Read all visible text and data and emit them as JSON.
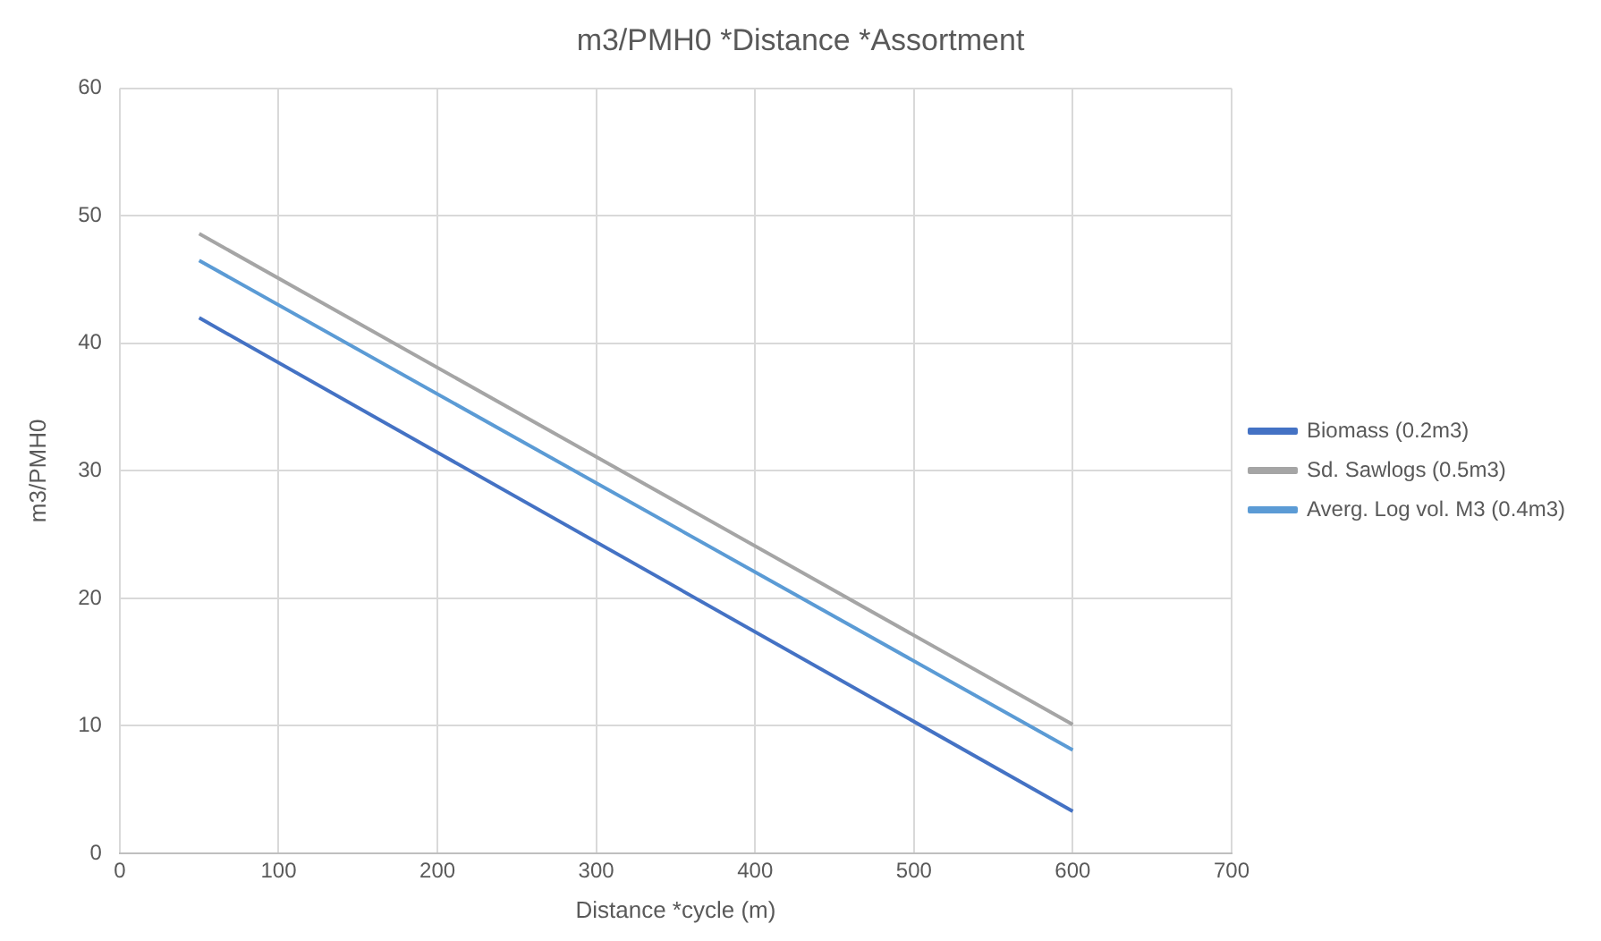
{
  "chart_data": {
    "type": "line",
    "title": "m3/PMH0 *Distance *Assortment",
    "xlabel": "Distance *cycle (m)",
    "ylabel": "m3/PMH0",
    "xlim": [
      0,
      700
    ],
    "xticks": [
      0,
      100,
      200,
      300,
      400,
      500,
      600,
      700
    ],
    "ylim": [
      0,
      60
    ],
    "yticks": [
      0,
      10,
      20,
      30,
      40,
      50,
      60
    ],
    "grid": true,
    "legend": "right",
    "marker": "none",
    "x": [
      50,
      600
    ],
    "series": [
      {
        "name": "Biomass (0.2m3)",
        "color": "#4472c4",
        "values": [
          42,
          3.3
        ]
      },
      {
        "name": "Sd. Sawlogs (0.5m3)",
        "color": "#a5a5a5",
        "values": [
          48.6,
          10.1
        ]
      },
      {
        "name": "Averg. Log vol. M3 (0.4m3)",
        "color": "#5b9bd5",
        "values": [
          46.5,
          8.1
        ]
      }
    ]
  }
}
